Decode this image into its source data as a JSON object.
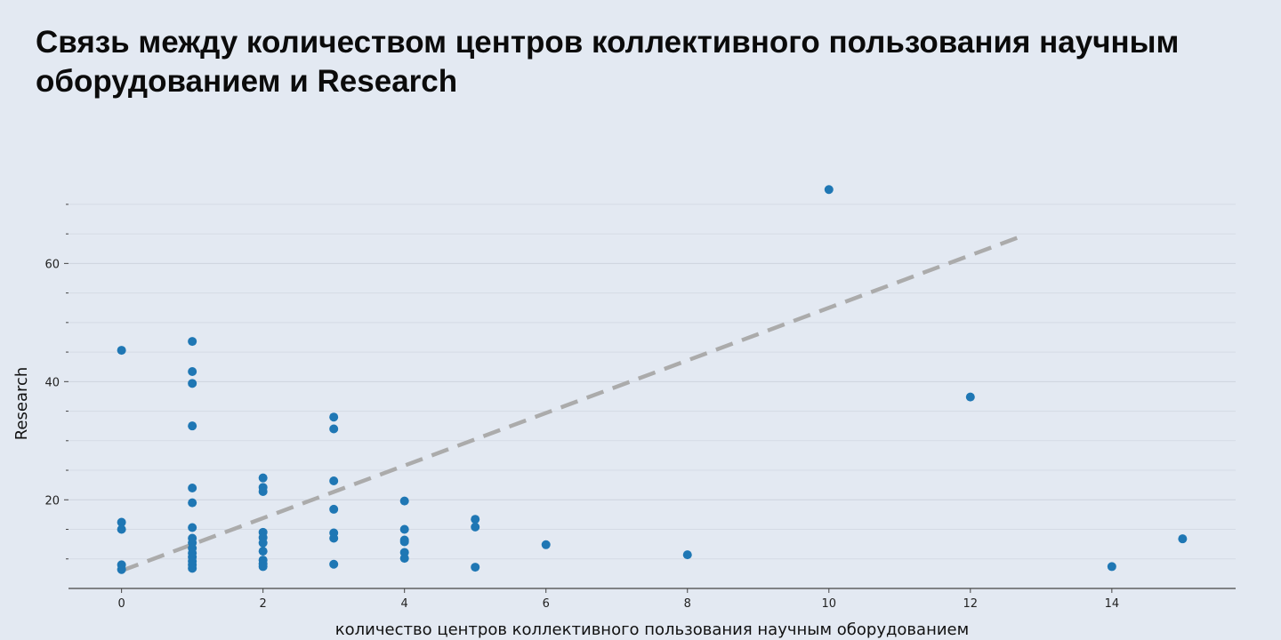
{
  "header": {
    "title": "Связь между количеством центров коллективного пользования научным оборудованием и Research"
  },
  "chart_data": {
    "type": "scatter",
    "title": "Связь между количеством центров коллективного пользования научным оборудованием и Research",
    "xlabel": "количество центров коллективного пользования научным оборудованием",
    "ylabel": "Research",
    "xlim": [
      -0.75,
      15.75
    ],
    "ylim": [
      5,
      76
    ],
    "x_ticks": [
      0,
      2,
      4,
      6,
      8,
      10,
      12,
      14
    ],
    "y_ticks": [
      20,
      40,
      60
    ],
    "y_minor_ticks": [
      10,
      15,
      25,
      30,
      35,
      45,
      50,
      55,
      65,
      70
    ],
    "grid": true,
    "colors": {
      "points": "#1f77b4",
      "trend": "#ababab",
      "grid": "#cdd3de",
      "axis": "#444444"
    },
    "trend_line": {
      "style": "dashed",
      "x": [
        0,
        12.7
      ],
      "y": [
        8.0,
        64.5
      ]
    },
    "points": [
      {
        "x": 0,
        "y": 45.3
      },
      {
        "x": 0,
        "y": 16.2
      },
      {
        "x": 0,
        "y": 15.0
      },
      {
        "x": 0,
        "y": 9.0
      },
      {
        "x": 0,
        "y": 8.2
      },
      {
        "x": 1,
        "y": 46.8
      },
      {
        "x": 1,
        "y": 41.7
      },
      {
        "x": 1,
        "y": 39.7
      },
      {
        "x": 1,
        "y": 32.5
      },
      {
        "x": 1,
        "y": 22.0
      },
      {
        "x": 1,
        "y": 19.5
      },
      {
        "x": 1,
        "y": 15.3
      },
      {
        "x": 1,
        "y": 13.5
      },
      {
        "x": 1,
        "y": 12.7
      },
      {
        "x": 1,
        "y": 11.8
      },
      {
        "x": 1,
        "y": 11.0
      },
      {
        "x": 1,
        "y": 10.3
      },
      {
        "x": 1,
        "y": 9.6
      },
      {
        "x": 1,
        "y": 9.0
      },
      {
        "x": 1,
        "y": 8.4
      },
      {
        "x": 2,
        "y": 23.7
      },
      {
        "x": 2,
        "y": 22.1
      },
      {
        "x": 2,
        "y": 21.4
      },
      {
        "x": 2,
        "y": 14.5
      },
      {
        "x": 2,
        "y": 13.6
      },
      {
        "x": 2,
        "y": 12.7
      },
      {
        "x": 2,
        "y": 11.3
      },
      {
        "x": 2,
        "y": 9.8
      },
      {
        "x": 2,
        "y": 9.2
      },
      {
        "x": 2,
        "y": 8.7
      },
      {
        "x": 3,
        "y": 34.0
      },
      {
        "x": 3,
        "y": 32.0
      },
      {
        "x": 3,
        "y": 23.2
      },
      {
        "x": 3,
        "y": 18.4
      },
      {
        "x": 3,
        "y": 14.4
      },
      {
        "x": 3,
        "y": 13.5
      },
      {
        "x": 3,
        "y": 9.1
      },
      {
        "x": 4,
        "y": 19.8
      },
      {
        "x": 4,
        "y": 15.0
      },
      {
        "x": 4,
        "y": 13.2
      },
      {
        "x": 4,
        "y": 12.9
      },
      {
        "x": 4,
        "y": 11.1
      },
      {
        "x": 4,
        "y": 10.1
      },
      {
        "x": 5,
        "y": 16.7
      },
      {
        "x": 5,
        "y": 15.4
      },
      {
        "x": 5,
        "y": 8.6
      },
      {
        "x": 6,
        "y": 12.4
      },
      {
        "x": 8,
        "y": 10.7
      },
      {
        "x": 10,
        "y": 72.5
      },
      {
        "x": 12,
        "y": 37.4
      },
      {
        "x": 14,
        "y": 8.7
      },
      {
        "x": 15,
        "y": 13.4
      }
    ]
  }
}
